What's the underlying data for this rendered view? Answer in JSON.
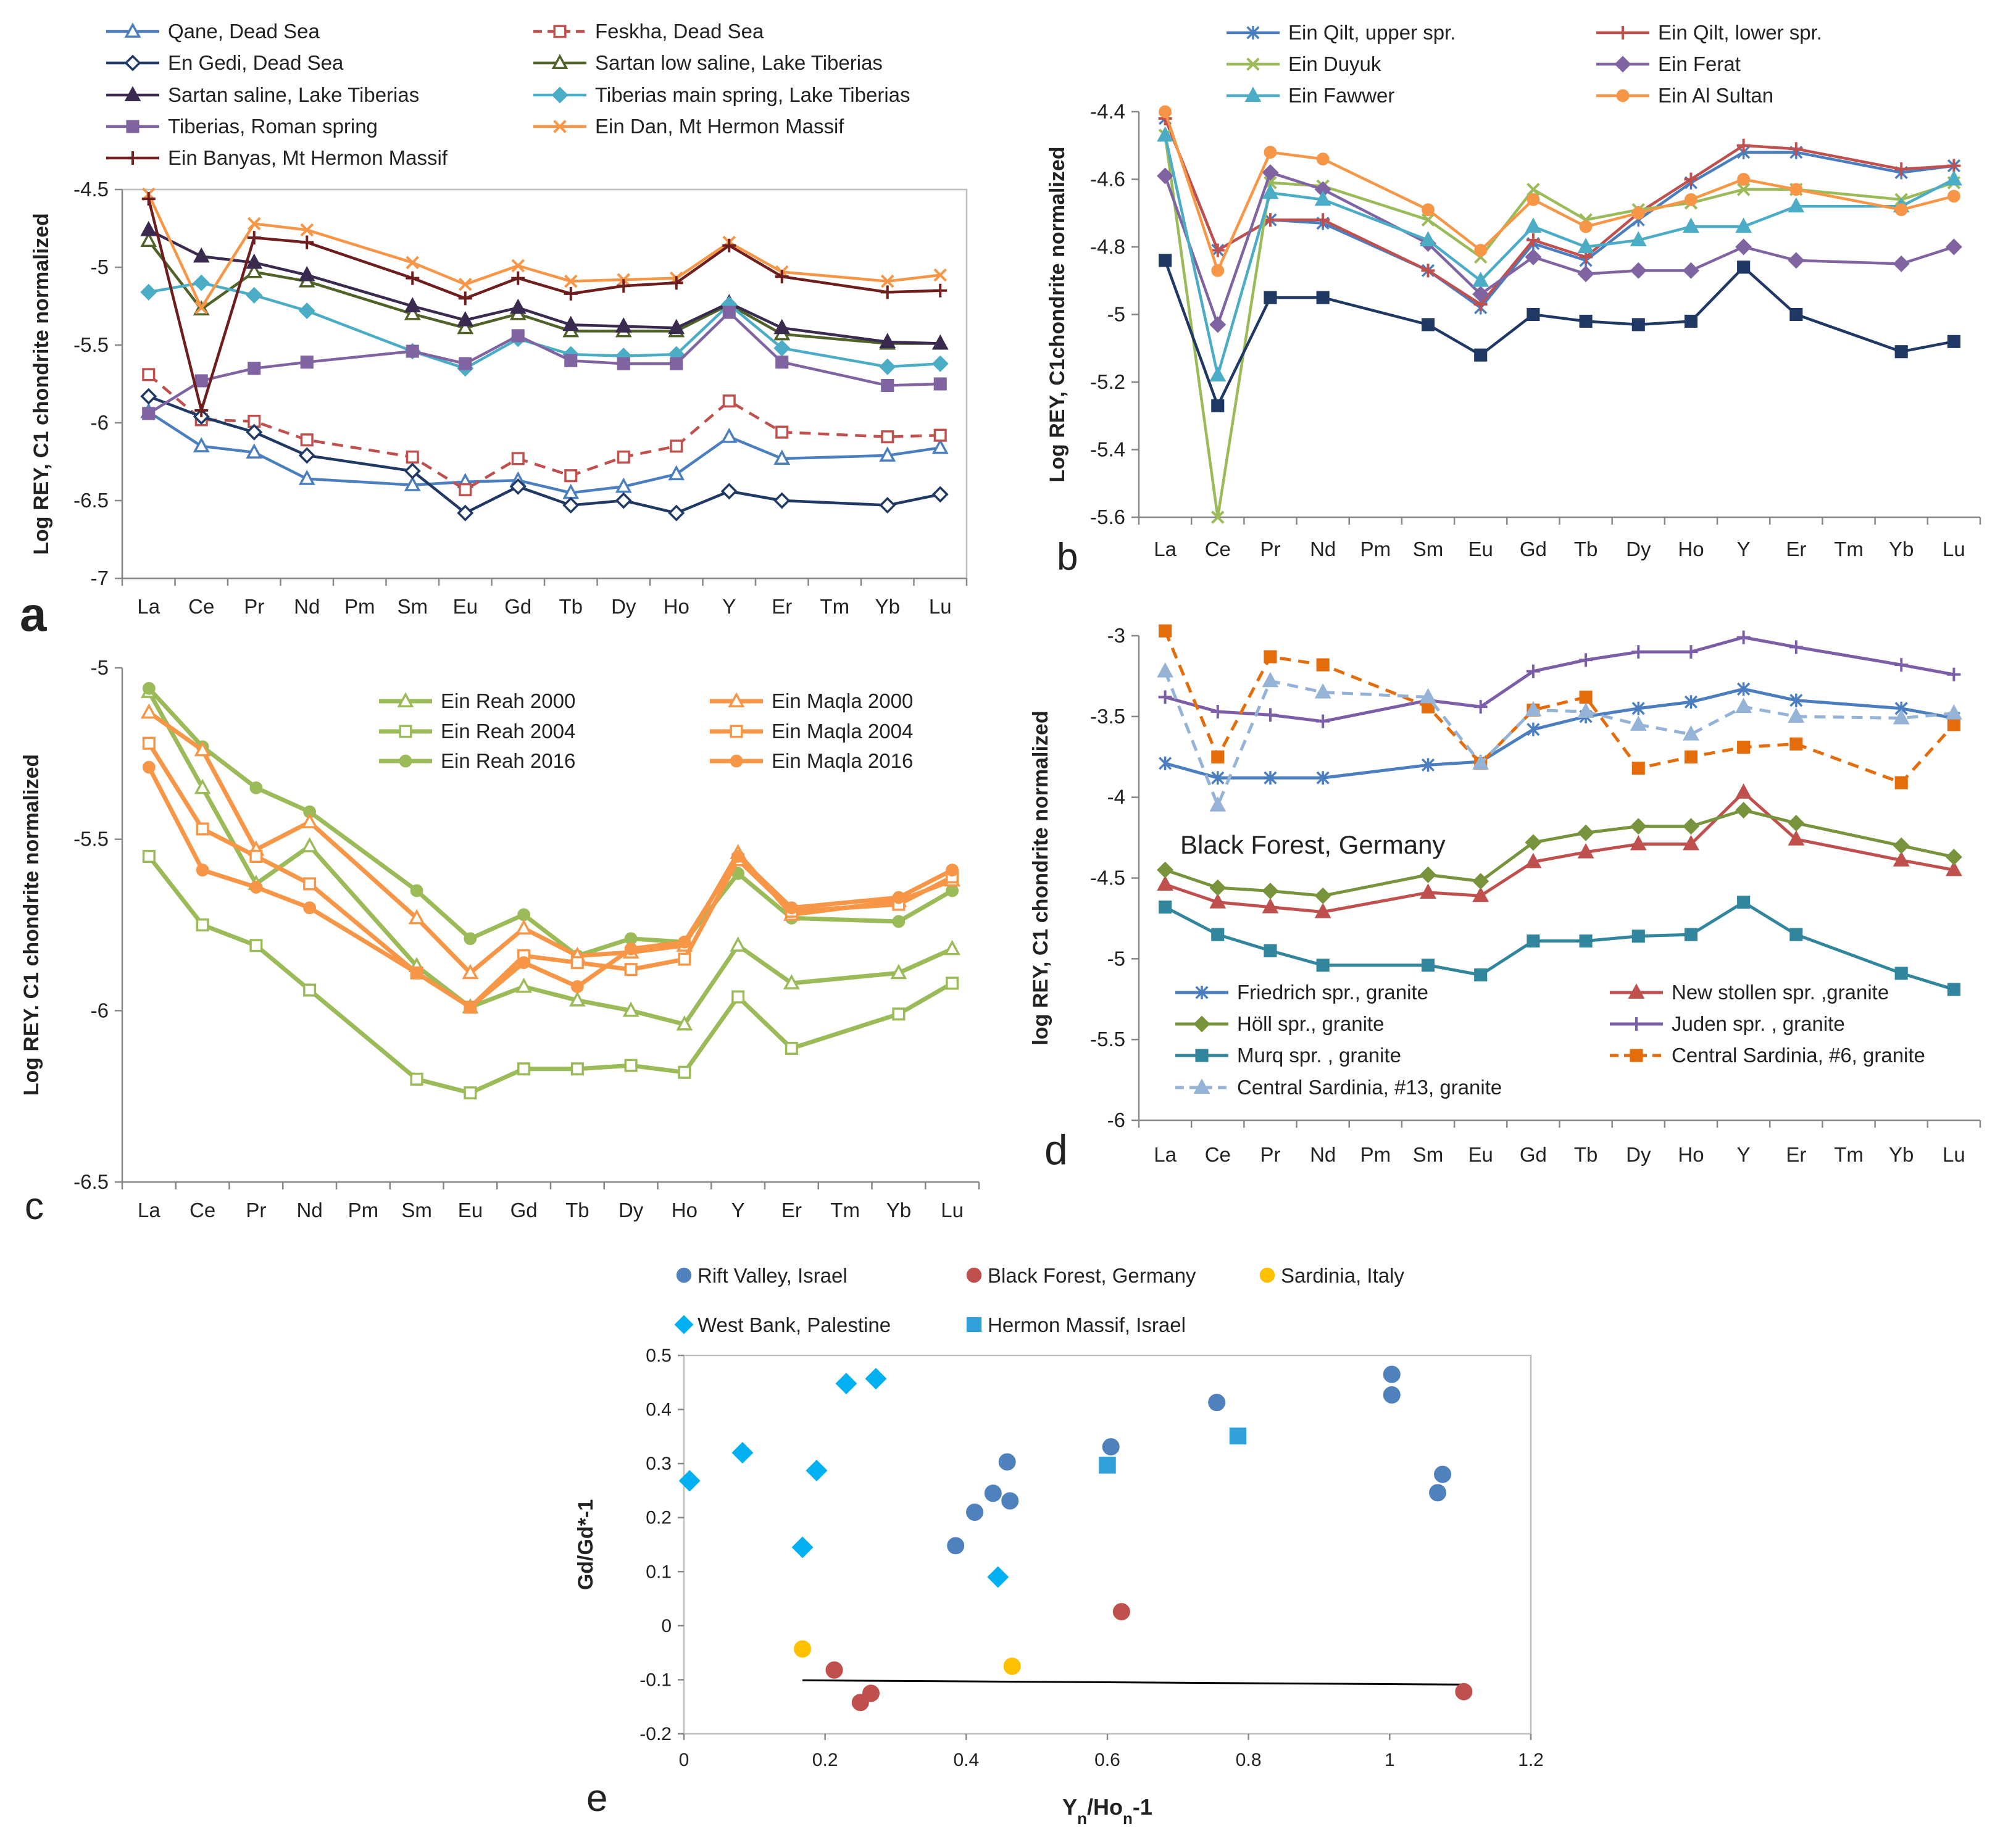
{
  "chart_data": [
    {
      "panel": "a",
      "type": "line",
      "ylabel": "Log REY, C1 chondrite normalized",
      "ylim": [
        -7,
        -4.5
      ],
      "yticks": [
        -7,
        -6.5,
        -6,
        -5.5,
        -5,
        -4.5
      ],
      "tick_labels": [
        "-7",
        "-6.5",
        "-6",
        "-5.5",
        "-5",
        "-4.5"
      ],
      "grid": false,
      "legend": "top",
      "categories": [
        "La",
        "Ce",
        "Pr",
        "Nd",
        "Pm",
        "Sm",
        "Eu",
        "Gd",
        "Tb",
        "Dy",
        "Ho",
        "Y",
        "Er",
        "Tm",
        "Yb",
        "Lu"
      ],
      "series": [
        {
          "name": "Qane, Dead Sea",
          "color": "#4a7ebf",
          "marker": "triangle-open",
          "dash": false,
          "values": [
            -5.93,
            -6.15,
            -6.19,
            -6.36,
            null,
            -6.4,
            -6.38,
            -6.37,
            -6.45,
            -6.41,
            -6.33,
            -6.09,
            -6.23,
            null,
            -6.21,
            -6.16
          ]
        },
        {
          "name": "Feskha, Dead Sea",
          "color": "#c0504d",
          "marker": "square-open",
          "dash": true,
          "values": [
            -5.69,
            -5.98,
            -5.99,
            -6.11,
            null,
            -6.22,
            -6.43,
            -6.23,
            -6.34,
            -6.22,
            -6.15,
            -5.86,
            -6.06,
            null,
            -6.09,
            -6.08
          ]
        },
        {
          "name": "En Gedi, Dead Sea",
          "color": "#1f3864",
          "marker": "diamond-open",
          "dash": false,
          "values": [
            -5.83,
            -5.96,
            -6.06,
            -6.21,
            null,
            -6.31,
            -6.58,
            -6.41,
            -6.53,
            -6.5,
            -6.58,
            -6.44,
            -6.5,
            null,
            -6.53,
            -6.46
          ]
        },
        {
          "name": "Sartan low saline, Lake Tiberias",
          "color": "#4f6228",
          "marker": "triangle-open",
          "dash": false,
          "values": [
            -4.83,
            -5.27,
            -5.03,
            -5.09,
            null,
            -5.3,
            -5.39,
            -5.3,
            -5.41,
            -5.41,
            -5.41,
            -5.24,
            -5.43,
            null,
            -5.49,
            -5.49
          ]
        },
        {
          "name": "Sartan saline, Lake Tiberias",
          "color": "#3b2a4f",
          "marker": "triangle",
          "dash": false,
          "values": [
            -4.76,
            -4.93,
            -4.97,
            -5.05,
            null,
            -5.25,
            -5.34,
            -5.26,
            -5.37,
            -5.38,
            -5.39,
            -5.23,
            -5.39,
            null,
            -5.48,
            -5.49
          ]
        },
        {
          "name": "Tiberias main spring, Lake Tiberias",
          "color": "#4bacc6",
          "marker": "diamond",
          "dash": false,
          "values": [
            -5.16,
            -5.1,
            -5.18,
            -5.28,
            null,
            -5.54,
            -5.65,
            -5.46,
            -5.56,
            -5.57,
            -5.56,
            -5.24,
            -5.52,
            null,
            -5.64,
            -5.62
          ]
        },
        {
          "name": "Tiberias, Roman spring",
          "color": "#8064a2",
          "marker": "square",
          "dash": false,
          "values": [
            -5.94,
            -5.73,
            -5.65,
            -5.61,
            null,
            -5.54,
            -5.62,
            -5.44,
            -5.6,
            -5.62,
            -5.62,
            -5.29,
            -5.61,
            null,
            -5.76,
            -5.75
          ]
        },
        {
          "name": "Ein Dan, Mt Hermon Massif",
          "color": "#f79646",
          "marker": "x",
          "dash": false,
          "values": [
            -4.53,
            -5.26,
            -4.72,
            -4.76,
            null,
            -4.97,
            -5.11,
            -4.99,
            -5.09,
            -5.08,
            -5.07,
            -4.84,
            -5.03,
            null,
            -5.09,
            -5.05
          ]
        },
        {
          "name": "Ein Banyas, Mt Hermon Massif",
          "color": "#6f1e1e",
          "marker": "plus",
          "dash": false,
          "values": [
            -4.56,
            -5.92,
            -4.81,
            -4.84,
            null,
            -5.07,
            -5.2,
            -5.07,
            -5.17,
            -5.12,
            -5.1,
            -4.86,
            -5.06,
            null,
            -5.16,
            -5.15
          ]
        }
      ]
    },
    {
      "panel": "b",
      "type": "line",
      "ylabel": "Log REY, C1chondrite normalized",
      "ylim": [
        -5.6,
        -4.4
      ],
      "yticks": [
        -5.6,
        -5.4,
        -5.2,
        -5,
        -4.8,
        -4.6,
        -4.4
      ],
      "tick_labels": [
        "-5.6",
        "-5.4",
        "-5.2",
        "-5",
        "-4.8",
        "-4.6",
        "-4.4"
      ],
      "grid": false,
      "legend": "top",
      "categories": [
        "La",
        "Ce",
        "Pr",
        "Nd",
        "Pm",
        "Sm",
        "Eu",
        "Gd",
        "Tb",
        "Dy",
        "Ho",
        "Y",
        "Er",
        "Tm",
        "Yb",
        "Lu"
      ],
      "series": [
        {
          "name": "Ein Qilt, upper spr.",
          "color": "#4a7ebf",
          "marker": "star",
          "dash": false,
          "values": [
            -4.42,
            -4.81,
            -4.72,
            -4.73,
            null,
            -4.87,
            -4.98,
            -4.79,
            -4.84,
            -4.72,
            -4.61,
            -4.52,
            -4.52,
            null,
            -4.58,
            -4.56
          ]
        },
        {
          "name": "Ein Qilt, lower spr.",
          "color": "#c0504d",
          "marker": "plus",
          "dash": false,
          "values": [
            -4.42,
            -4.81,
            -4.72,
            -4.72,
            null,
            -4.87,
            -4.97,
            -4.78,
            -4.83,
            -4.7,
            -4.6,
            -4.5,
            -4.51,
            null,
            -4.57,
            -4.56
          ]
        },
        {
          "name": "Ein Duyuk",
          "color": "#9bbb59",
          "marker": "x",
          "dash": false,
          "values": [
            -4.47,
            -5.6,
            -4.61,
            -4.62,
            null,
            -4.72,
            -4.83,
            -4.63,
            -4.72,
            -4.69,
            -4.67,
            -4.63,
            -4.63,
            null,
            -4.66,
            -4.61
          ]
        },
        {
          "name": "Ein Ferat",
          "color": "#8064a2",
          "marker": "diamond",
          "dash": false,
          "values": [
            -4.59,
            -5.03,
            -4.58,
            -4.63,
            null,
            -4.79,
            -4.94,
            -4.83,
            -4.88,
            -4.87,
            -4.87,
            -4.8,
            -4.84,
            null,
            -4.85,
            -4.8
          ]
        },
        {
          "name": "Ein Fawwer",
          "color": "#4bacc6",
          "marker": "triangle",
          "dash": false,
          "values": [
            -4.47,
            -5.18,
            -4.64,
            -4.66,
            null,
            -4.78,
            -4.9,
            -4.74,
            -4.8,
            -4.78,
            -4.74,
            -4.74,
            -4.68,
            null,
            -4.68,
            -4.6
          ]
        },
        {
          "name": "Ein Al Sultan",
          "color": "#f79646",
          "marker": "circle",
          "dash": false,
          "values": [
            -4.4,
            -4.87,
            -4.52,
            -4.54,
            null,
            -4.69,
            -4.81,
            -4.66,
            -4.74,
            -4.7,
            -4.66,
            -4.6,
            -4.63,
            null,
            -4.69,
            -4.65
          ]
        },
        {
          "name": "",
          "color": "#1f3864",
          "marker": "square",
          "dash": false,
          "values": [
            -4.84,
            -5.27,
            -4.95,
            -4.95,
            null,
            -5.03,
            -5.12,
            -5,
            -5.02,
            -5.03,
            -5.02,
            -4.86,
            -5,
            null,
            -5.11,
            -5.08
          ]
        }
      ]
    },
    {
      "panel": "c",
      "type": "line",
      "ylabel": "Log REY. C1 chondrite normalized",
      "ylim": [
        -6.5,
        -5
      ],
      "yticks": [
        -6.5,
        -6,
        -5.5,
        -5
      ],
      "tick_labels": [
        "-6.5",
        "-6",
        "-5.5",
        "-5"
      ],
      "grid": false,
      "legend": "top-right",
      "categories": [
        "La",
        "Ce",
        "Pr",
        "Nd",
        "Pm",
        "Sm",
        "Eu",
        "Gd",
        "Tb",
        "Dy",
        "Ho",
        "Y",
        "Er",
        "Tm",
        "Yb",
        "Lu"
      ],
      "series": [
        {
          "name": "Ein Reah 2000",
          "color": "#9bbb59",
          "marker": "triangle-open",
          "dash": false,
          "values": [
            -5.07,
            -5.35,
            -5.63,
            -5.52,
            null,
            -5.87,
            -5.99,
            -5.93,
            -5.97,
            -6,
            -6.04,
            -5.81,
            -5.92,
            null,
            -5.89,
            -5.82
          ]
        },
        {
          "name": "Ein Reah 2004",
          "color": "#9bbb59",
          "marker": "square-open",
          "dash": false,
          "values": [
            -5.55,
            -5.75,
            -5.81,
            -5.94,
            null,
            -6.2,
            -6.24,
            -6.17,
            -6.17,
            -6.16,
            -6.18,
            -5.96,
            -6.11,
            null,
            -6.01,
            -5.92
          ]
        },
        {
          "name": "Ein Reah 2016",
          "color": "#9bbb59",
          "marker": "circle",
          "dash": false,
          "values": [
            -5.06,
            -5.23,
            -5.35,
            -5.42,
            null,
            -5.65,
            -5.79,
            -5.72,
            -5.84,
            -5.79,
            -5.8,
            -5.6,
            -5.73,
            null,
            -5.74,
            -5.65
          ]
        },
        {
          "name": "Ein Maqla 2000",
          "color": "#f79646",
          "marker": "triangle-open",
          "dash": false,
          "values": [
            -5.13,
            -5.24,
            -5.53,
            -5.45,
            null,
            -5.73,
            -5.89,
            -5.76,
            -5.84,
            -5.83,
            -5.81,
            -5.54,
            -5.72,
            null,
            -5.68,
            -5.62
          ]
        },
        {
          "name": "Ein Maqla 2004",
          "color": "#f79646",
          "marker": "square-open",
          "dash": false,
          "values": [
            -5.22,
            -5.47,
            -5.55,
            -5.63,
            null,
            -5.89,
            -5.99,
            -5.84,
            -5.86,
            -5.88,
            -5.85,
            -5.56,
            -5.71,
            null,
            -5.69,
            -5.61
          ]
        },
        {
          "name": "Ein Maqla 2016",
          "color": "#f79646",
          "marker": "circle",
          "dash": false,
          "values": [
            -5.29,
            -5.59,
            -5.64,
            -5.7,
            null,
            -5.89,
            -5.99,
            -5.86,
            -5.93,
            -5.82,
            -5.8,
            -5.55,
            -5.7,
            null,
            -5.67,
            -5.59
          ]
        }
      ]
    },
    {
      "panel": "d",
      "type": "line",
      "ylabel": "log REY, C1 chondrite normalized",
      "annotation": "Black Forest, Germany",
      "ylim": [
        -6,
        -3
      ],
      "yticks": [
        -6,
        -5.5,
        -5,
        -4.5,
        -4,
        -3.5,
        -3
      ],
      "tick_labels": [
        "-6",
        "-5.5",
        "-5",
        "-4.5",
        "-4",
        "-3.5",
        "-3"
      ],
      "grid": false,
      "legend": "bottom",
      "categories": [
        "La",
        "Ce",
        "Pr",
        "Nd",
        "Pm",
        "Sm",
        "Eu",
        "Gd",
        "Tb",
        "Dy",
        "Ho",
        "Y",
        "Er",
        "Tm",
        "Yb",
        "Lu"
      ],
      "series": [
        {
          "name": "Friedrich spr., granite",
          "color": "#4a7ebf",
          "marker": "star",
          "dash": false,
          "values": [
            -3.79,
            -3.88,
            -3.88,
            -3.88,
            null,
            -3.8,
            -3.78,
            -3.58,
            -3.5,
            -3.45,
            -3.41,
            -3.33,
            -3.4,
            null,
            -3.45,
            -3.51
          ]
        },
        {
          "name": "New stollen spr. ,granite",
          "color": "#c0504d",
          "marker": "triangle",
          "dash": false,
          "values": [
            -4.54,
            -4.65,
            -4.68,
            -4.71,
            null,
            -4.59,
            -4.61,
            -4.4,
            -4.34,
            -4.29,
            -4.29,
            -3.97,
            -4.26,
            null,
            -4.39,
            -4.45
          ]
        },
        {
          "name": "Höll spr., granite",
          "color": "#77933c",
          "marker": "diamond",
          "dash": false,
          "values": [
            -4.45,
            -4.56,
            -4.58,
            -4.61,
            null,
            -4.48,
            -4.52,
            -4.28,
            -4.22,
            -4.18,
            -4.18,
            -4.08,
            -4.16,
            null,
            -4.3,
            -4.37
          ]
        },
        {
          "name": "Juden spr. , granite",
          "color": "#7b5ea7",
          "marker": "plus",
          "dash": false,
          "values": [
            -3.38,
            -3.47,
            -3.49,
            -3.53,
            null,
            -3.4,
            -3.44,
            -3.22,
            -3.15,
            -3.1,
            -3.1,
            -3.01,
            -3.07,
            null,
            -3.18,
            -3.24
          ]
        },
        {
          "name": "Murq spr. , granite",
          "color": "#31859c",
          "marker": "square",
          "dash": false,
          "values": [
            -4.68,
            -4.85,
            -4.95,
            -5.04,
            null,
            -5.04,
            -5.1,
            -4.89,
            -4.89,
            -4.86,
            -4.85,
            -4.65,
            -4.85,
            null,
            -5.09,
            -5.19
          ]
        },
        {
          "name": "Central Sardinia, #6, granite",
          "color": "#e46c0a",
          "marker": "square",
          "dash": true,
          "values": [
            -2.97,
            -3.75,
            -3.13,
            -3.18,
            null,
            -3.44,
            -3.79,
            -3.46,
            -3.38,
            -3.82,
            -3.75,
            -3.69,
            -3.67,
            null,
            -3.91,
            -3.55
          ]
        },
        {
          "name": "Central Sardinia, #13, granite",
          "color": "#95b3d7",
          "marker": "triangle",
          "dash": true,
          "values": [
            -3.22,
            -4.05,
            -3.28,
            -3.35,
            null,
            -3.38,
            -3.79,
            -3.46,
            -3.47,
            -3.55,
            -3.61,
            -3.44,
            -3.5,
            null,
            -3.51,
            -3.48
          ]
        }
      ]
    },
    {
      "panel": "e",
      "type": "scatter",
      "xlabel_main": "Y",
      "xlabel_sub1": "n",
      "xlabel_mid": "/Ho",
      "xlabel_sub2": "n",
      "xlabel_end": "-1",
      "ylabel": "Gd/Gd*-1",
      "xlim": [
        0,
        1.2
      ],
      "ylim": [
        -0.2,
        0.5
      ],
      "xticks": [
        0,
        0.2,
        0.4,
        0.6,
        0.8,
        1,
        1.2
      ],
      "xtick_labels": [
        "0",
        "0.2",
        "0.4",
        "0.6",
        "0.8",
        "1",
        "1.2"
      ],
      "yticks": [
        -0.2,
        -0.1,
        0,
        0.1,
        0.2,
        0.3,
        0.4,
        0.5
      ],
      "ytick_labels": [
        "-0.2",
        "-0.1",
        "0",
        "0.1",
        "0.2",
        "0.3",
        "0.4",
        "0.5"
      ],
      "grid": false,
      "legend": "top",
      "trendline": {
        "x": [
          0.168,
          1.105
        ],
        "y": [
          -0.101,
          -0.109
        ]
      },
      "series": [
        {
          "name": "Rift Valley, Israel",
          "color": "#4f81bd",
          "marker": "circle",
          "x": [
            0.385,
            0.412,
            0.438,
            0.458,
            0.462,
            0.605,
            0.755,
            1.003,
            1.003,
            1.068,
            1.075
          ],
          "y": [
            0.148,
            0.21,
            0.245,
            0.303,
            0.231,
            0.331,
            0.413,
            0.427,
            0.465,
            0.246,
            0.28
          ]
        },
        {
          "name": "Black Forest, Germany",
          "color": "#c0504d",
          "marker": "circle",
          "x": [
            0.213,
            0.25,
            0.265,
            0.62,
            1.105
          ],
          "y": [
            -0.082,
            -0.142,
            -0.125,
            0.026,
            -0.122
          ]
        },
        {
          "name": "Sardinia, Italy",
          "color": "#ffc000",
          "marker": "circle",
          "x": [
            0.168,
            0.465
          ],
          "y": [
            -0.043,
            -0.075
          ]
        },
        {
          "name": "West Bank, Palestine",
          "color": "#00b0f0",
          "marker": "diamond",
          "x": [
            0.008,
            0.083,
            0.168,
            0.188,
            0.23,
            0.272,
            0.445
          ],
          "y": [
            0.268,
            0.32,
            0.145,
            0.287,
            0.448,
            0.457,
            0.09
          ]
        },
        {
          "name": "Hermon Massif, Israel",
          "color": "#31a0d8",
          "marker": "square",
          "x": [
            0.6,
            0.785
          ],
          "y": [
            0.297,
            0.351
          ]
        }
      ]
    }
  ],
  "panel_letters": {
    "a": "a",
    "b": "b",
    "c": "c",
    "d": "d",
    "e": "e"
  }
}
